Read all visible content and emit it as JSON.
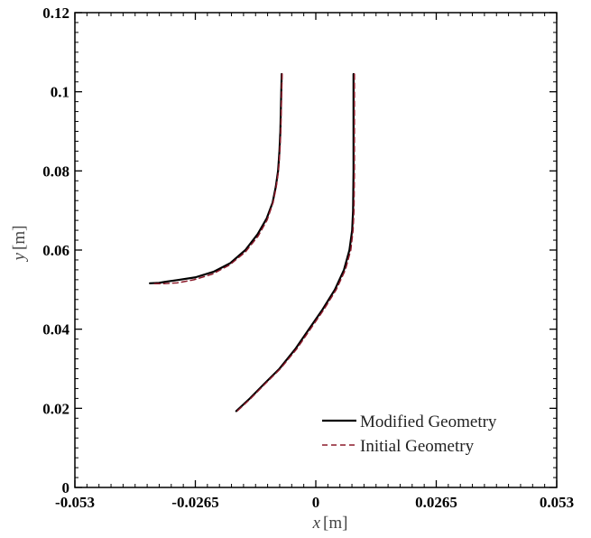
{
  "chart_data": {
    "type": "line",
    "title": "",
    "xlabel_var": "x",
    "xlabel_unit": "[m]",
    "ylabel_var": "y",
    "ylabel_unit": "[m]",
    "xlim": [
      -0.053,
      0.053
    ],
    "ylim": [
      0,
      0.12
    ],
    "xticks": [
      -0.053,
      -0.0265,
      0,
      0.0265,
      0.053
    ],
    "xtick_labels": [
      "-0.053",
      "-0.0265",
      "0",
      "0.0265",
      "0.053"
    ],
    "yticks": [
      0,
      0.02,
      0.04,
      0.06,
      0.08,
      0.1,
      0.12
    ],
    "ytick_labels": [
      "0",
      "0.02",
      "0.04",
      "0.06",
      "0.08",
      "0.1",
      "0.12"
    ],
    "grid": false,
    "legend_position": "bottom-right",
    "series": [
      {
        "name": "Modified Geometry",
        "style": "solid",
        "color": "#000000",
        "segments": [
          [
            [
              -0.0075,
              0.1045
            ],
            [
              -0.0076,
              0.1
            ],
            [
              -0.0077,
              0.095
            ],
            [
              -0.0078,
              0.09
            ],
            [
              -0.008,
              0.085
            ],
            [
              -0.0083,
              0.08
            ],
            [
              -0.0088,
              0.076
            ],
            [
              -0.0095,
              0.072
            ],
            [
              -0.0108,
              0.068
            ],
            [
              -0.0128,
              0.064
            ],
            [
              -0.0155,
              0.06
            ],
            [
              -0.0188,
              0.0567
            ],
            [
              -0.0225,
              0.0545
            ],
            [
              -0.0265,
              0.0531
            ],
            [
              -0.0305,
              0.0524
            ],
            [
              -0.033,
              0.052
            ],
            [
              -0.0345,
              0.0517
            ],
            [
              -0.0365,
              0.0516
            ]
          ],
          [
            [
              0.0083,
              0.1045
            ],
            [
              0.0083,
              0.1
            ],
            [
              0.0083,
              0.09
            ],
            [
              0.0083,
              0.08
            ],
            [
              0.0082,
              0.07
            ],
            [
              0.008,
              0.065
            ],
            [
              0.0074,
              0.06
            ],
            [
              0.0062,
              0.055
            ],
            [
              0.0042,
              0.05
            ],
            [
              0.0015,
              0.045
            ],
            [
              -0.0015,
              0.04
            ],
            [
              -0.0045,
              0.035
            ],
            [
              -0.008,
              0.03
            ],
            [
              -0.0115,
              0.026
            ],
            [
              -0.0145,
              0.0225
            ],
            [
              -0.0175,
              0.0193
            ]
          ]
        ]
      },
      {
        "name": "Initial Geometry",
        "style": "dashed",
        "color": "#8b1a2a",
        "segments": [
          [
            [
              -0.0074,
              0.1045
            ],
            [
              -0.0075,
              0.1
            ],
            [
              -0.0076,
              0.095
            ],
            [
              -0.0077,
              0.09
            ],
            [
              -0.0079,
              0.085
            ],
            [
              -0.0082,
              0.08
            ],
            [
              -0.0087,
              0.076
            ],
            [
              -0.0094,
              0.072
            ],
            [
              -0.0107,
              0.0676
            ],
            [
              -0.0127,
              0.0635
            ],
            [
              -0.0155,
              0.0595
            ],
            [
              -0.019,
              0.0562
            ],
            [
              -0.0228,
              0.0539
            ],
            [
              -0.0268,
              0.0525
            ],
            [
              -0.0305,
              0.0517
            ],
            [
              -0.0335,
              0.0515
            ],
            [
              -0.036,
              0.0515
            ]
          ],
          [
            [
              0.0085,
              0.1045
            ],
            [
              0.0085,
              0.1
            ],
            [
              0.0085,
              0.09
            ],
            [
              0.0085,
              0.08
            ],
            [
              0.0084,
              0.07
            ],
            [
              0.0082,
              0.065
            ],
            [
              0.0077,
              0.06
            ],
            [
              0.0065,
              0.055
            ],
            [
              0.0045,
              0.05
            ],
            [
              0.0018,
              0.045
            ],
            [
              -0.0012,
              0.04
            ],
            [
              -0.0042,
              0.035
            ],
            [
              -0.0078,
              0.03
            ],
            [
              -0.0113,
              0.026
            ],
            [
              -0.0143,
              0.0225
            ],
            [
              -0.0173,
              0.0193
            ]
          ]
        ]
      }
    ]
  }
}
